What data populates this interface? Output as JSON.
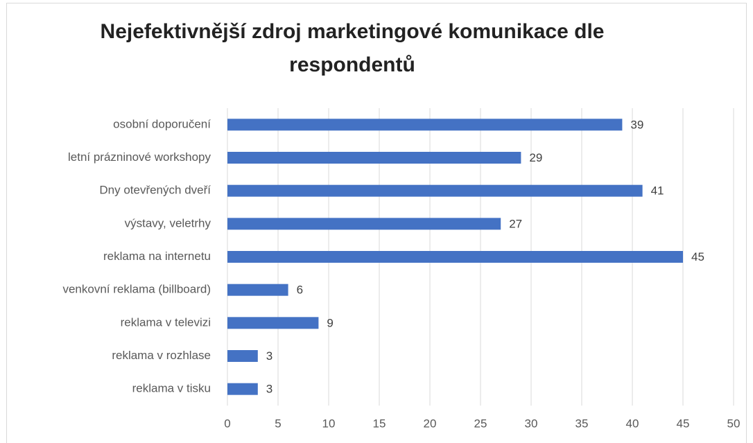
{
  "chart_data": {
    "type": "barh",
    "title": "Nejefektivnější zdroj marketingové komunikace dle respondentů",
    "categories": [
      "osobní doporučení",
      "letní prázninové workshopy",
      "Dny otevřených dveří",
      "výstavy, veletrhy",
      "reklama na internetu",
      "venkovní reklama (billboard)",
      "reklama v televizi",
      "reklama v rozhlase",
      "reklama v tisku"
    ],
    "values": [
      39,
      29,
      41,
      27,
      45,
      6,
      9,
      3,
      3
    ],
    "color": "#4472c4",
    "xlim": [
      0,
      50
    ],
    "xticks": [
      0,
      5,
      10,
      15,
      20,
      25,
      30,
      35,
      40,
      45,
      50
    ],
    "grid": true
  }
}
